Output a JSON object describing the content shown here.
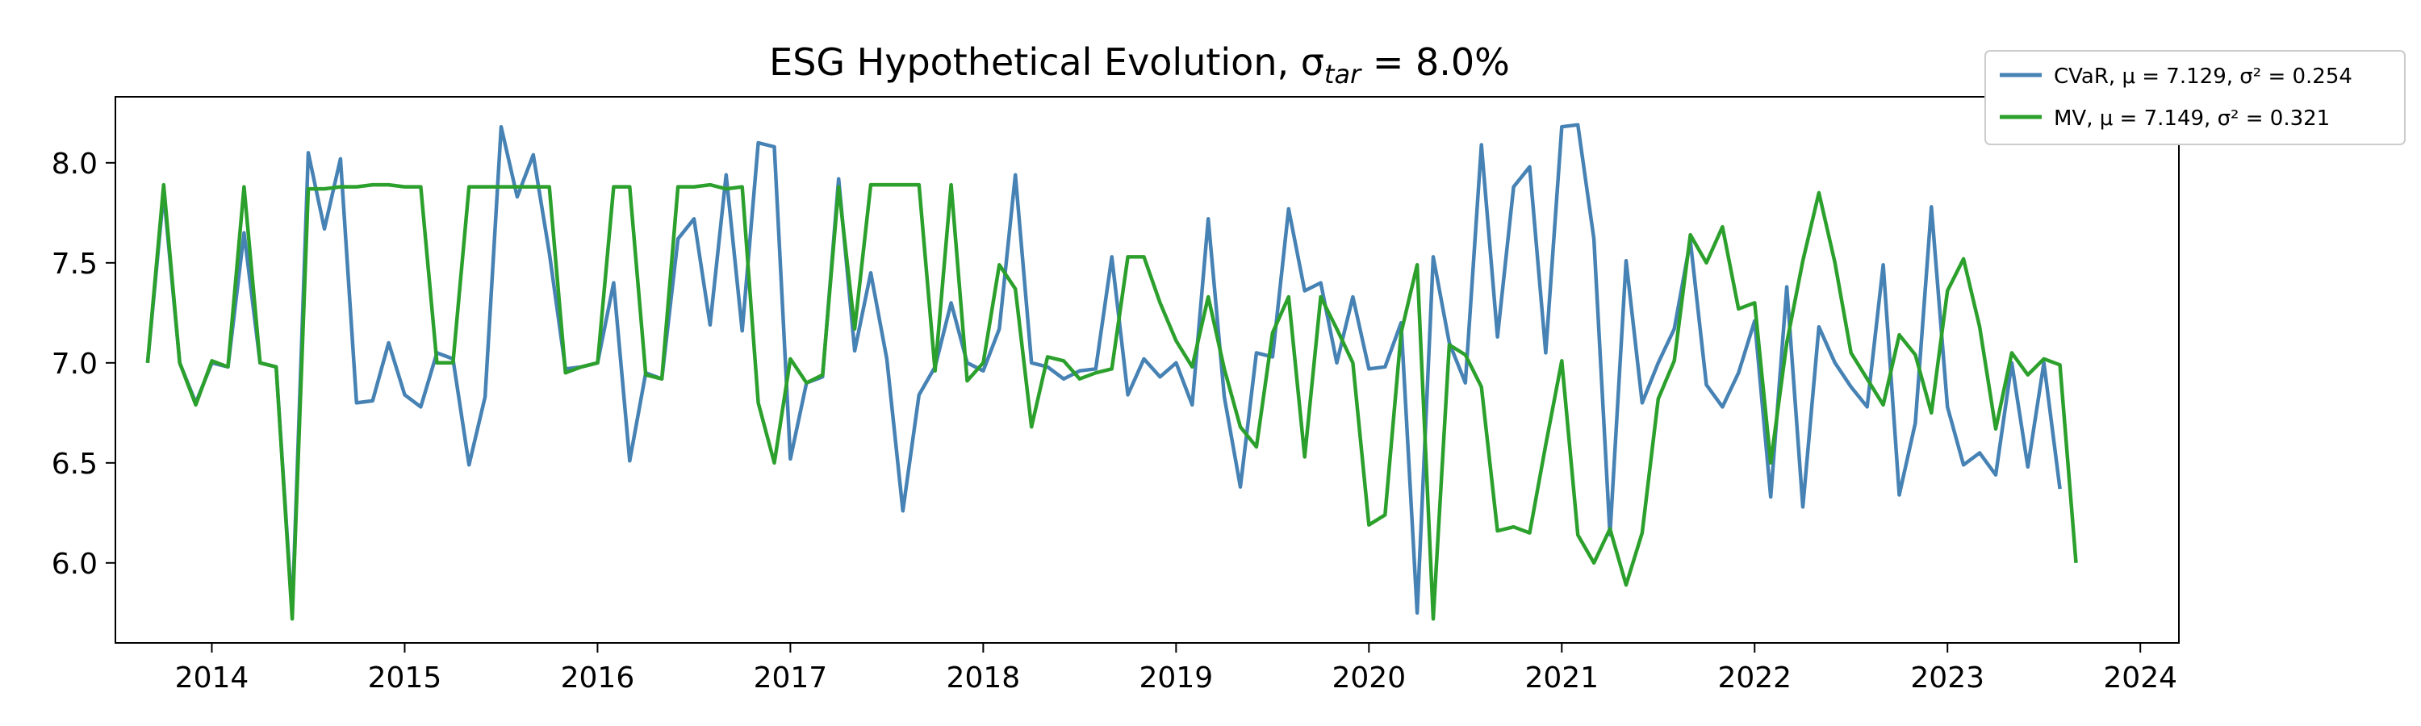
{
  "chart_data": {
    "type": "line",
    "title": "ESG Hypothetical Evolution, σ",
    "title_sub": "tar",
    "title_suffix": " = 8.0%",
    "xlabel": "",
    "ylabel": "",
    "xlim": [
      2013.5,
      2024.2
    ],
    "ylim": [
      5.6,
      8.33
    ],
    "x_ticks": [
      2014,
      2015,
      2016,
      2017,
      2018,
      2019,
      2020,
      2021,
      2022,
      2023,
      2024
    ],
    "y_ticks": [
      6.0,
      6.5,
      7.0,
      7.5,
      8.0
    ],
    "y_tick_labels": [
      "6.0",
      "6.5",
      "7.0",
      "7.5",
      "8.0"
    ],
    "grid": false,
    "legend_position": "top-right, outside plot",
    "x_start": 2013.667,
    "x_step": 0.08333,
    "series": [
      {
        "name": "CVaR, μ = 7.129, σ² = 0.254",
        "label_prefix": "CVaR, ",
        "mu_text": "μ = 7.129",
        "sigma_text": "σ² = 0.254",
        "color": "#4682b4",
        "values": [
          7.0,
          7.85,
          7.0,
          6.8,
          7.0,
          6.98,
          7.65,
          7.0,
          6.98,
          5.75,
          8.05,
          7.67,
          8.02,
          6.8,
          6.81,
          7.1,
          6.84,
          6.78,
          7.05,
          7.02,
          6.49,
          6.83,
          8.18,
          7.83,
          8.04,
          7.55,
          6.97,
          6.98,
          7.0,
          7.4,
          6.51,
          6.95,
          6.92,
          7.62,
          7.72,
          7.19,
          7.94,
          7.16,
          8.1,
          8.08,
          6.52,
          6.9,
          6.93,
          7.92,
          7.06,
          7.45,
          7.02,
          6.26,
          6.84,
          6.98,
          7.3,
          7.0,
          6.96,
          7.17,
          7.94,
          7.0,
          6.98,
          6.92,
          6.96,
          6.97,
          7.53,
          6.84,
          7.02,
          6.93,
          7.0,
          6.79,
          7.72,
          6.83,
          6.38,
          7.05,
          7.03,
          7.77,
          7.36,
          7.4,
          7.0,
          7.33,
          6.97,
          6.98,
          7.2,
          5.75,
          7.53,
          7.1,
          6.9,
          8.09,
          7.13,
          7.88,
          7.98,
          7.05,
          8.18,
          8.19,
          7.62,
          6.14,
          7.51,
          6.8,
          7.0,
          7.17,
          7.61,
          6.89,
          6.78,
          6.95,
          7.21,
          6.33,
          7.38,
          6.28,
          7.18,
          7.0,
          6.88,
          6.78,
          7.49,
          6.34,
          6.7,
          7.78,
          6.78,
          6.49,
          6.55,
          6.44,
          7.0,
          6.48,
          7.0,
          6.37
        ]
      },
      {
        "name": "MV, μ = 7.149, σ² = 0.321",
        "label_prefix": "MV, ",
        "mu_text": "μ = 7.149",
        "sigma_text": "σ² = 0.321",
        "color": "#2ca02c",
        "values": [
          7.0,
          7.89,
          7.0,
          6.79,
          7.01,
          6.98,
          7.88,
          7.0,
          6.98,
          5.72,
          7.87,
          7.87,
          7.88,
          7.88,
          7.89,
          7.89,
          7.88,
          7.88,
          7.0,
          7.0,
          7.88,
          7.88,
          7.88,
          7.88,
          7.88,
          7.88,
          6.95,
          6.98,
          7.0,
          7.88,
          7.88,
          6.94,
          6.92,
          7.88,
          7.88,
          7.89,
          7.87,
          7.88,
          6.8,
          6.5,
          7.02,
          6.9,
          6.94,
          7.88,
          7.17,
          7.89,
          7.89,
          7.89,
          7.89,
          6.96,
          7.89,
          6.91,
          7.0,
          7.49,
          7.37,
          6.68,
          7.03,
          7.01,
          6.92,
          6.95,
          6.97,
          7.53,
          7.53,
          7.3,
          7.11,
          6.98,
          7.33,
          6.97,
          6.68,
          6.58,
          7.15,
          7.33,
          6.53,
          7.33,
          7.17,
          7.0,
          6.19,
          6.24,
          7.15,
          7.49,
          5.72,
          7.09,
          7.04,
          6.88,
          6.16,
          6.18,
          6.15,
          6.59,
          7.01,
          6.14,
          6.0,
          6.17,
          5.89,
          6.15,
          6.82,
          7.01,
          7.64,
          7.5,
          7.68,
          7.27,
          7.3,
          6.5,
          7.1,
          7.51,
          7.85,
          7.5,
          7.05,
          6.92,
          6.79,
          7.14,
          7.04,
          6.75,
          7.36,
          7.52,
          7.18,
          6.67,
          7.05,
          6.94,
          7.02,
          6.99,
          6.0
        ]
      }
    ]
  }
}
